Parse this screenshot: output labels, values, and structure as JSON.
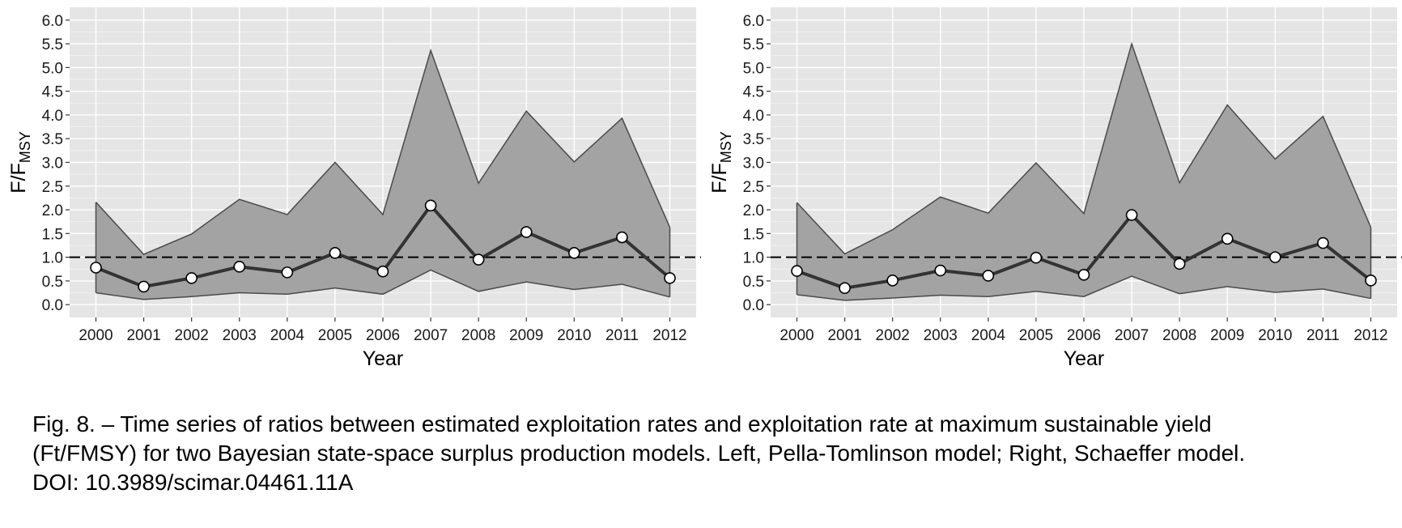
{
  "chart_data": [
    {
      "type": "line",
      "title": "",
      "xlabel": "Year",
      "ylabel": "F/FMSY",
      "ylabel_main": "F/F",
      "ylabel_sub": "MSY",
      "x": [
        2000,
        2001,
        2002,
        2003,
        2004,
        2005,
        2006,
        2007,
        2008,
        2009,
        2010,
        2011,
        2012
      ],
      "xticks": [
        "2000",
        "2001",
        "2002",
        "2003",
        "2004",
        "2005",
        "2006",
        "2007",
        "2008",
        "2009",
        "2010",
        "2011",
        "2012"
      ],
      "yticks": [
        "0.0",
        "0.5",
        "1.0",
        "1.5",
        "2.0",
        "2.5",
        "3.0",
        "3.5",
        "4.0",
        "4.5",
        "5.0",
        "5.5",
        "6.0"
      ],
      "ylim": [
        -0.27,
        6.27
      ],
      "reference_line_y": 1.0,
      "grid": true,
      "series": [
        {
          "role": "median",
          "values": [
            0.78,
            0.38,
            0.56,
            0.8,
            0.68,
            1.09,
            0.7,
            2.09,
            0.95,
            1.53,
            1.09,
            1.42,
            0.56
          ]
        },
        {
          "role": "upper",
          "values": [
            2.16,
            1.06,
            1.49,
            2.22,
            1.9,
            3.0,
            1.9,
            5.36,
            2.56,
            4.08,
            3.01,
            3.93,
            1.63
          ]
        },
        {
          "role": "lower",
          "values": [
            0.25,
            0.11,
            0.17,
            0.25,
            0.22,
            0.35,
            0.22,
            0.73,
            0.28,
            0.48,
            0.32,
            0.43,
            0.16
          ]
        }
      ]
    },
    {
      "type": "line",
      "title": "",
      "xlabel": "Year",
      "ylabel": "F/FMSY",
      "ylabel_main": "F/F",
      "ylabel_sub": "MSY",
      "x": [
        2000,
        2001,
        2002,
        2003,
        2004,
        2005,
        2006,
        2007,
        2008,
        2009,
        2010,
        2011,
        2012
      ],
      "xticks": [
        "2000",
        "2001",
        "2002",
        "2003",
        "2004",
        "2005",
        "2006",
        "2007",
        "2008",
        "2009",
        "2010",
        "2011",
        "2012"
      ],
      "yticks": [
        "0.0",
        "0.5",
        "1.0",
        "1.5",
        "2.0",
        "2.5",
        "3.0",
        "3.5",
        "4.0",
        "4.5",
        "5.0",
        "5.5",
        "6.0"
      ],
      "ylim": [
        -0.27,
        6.27
      ],
      "reference_line_y": 1.0,
      "grid": true,
      "series": [
        {
          "role": "median",
          "values": [
            0.71,
            0.35,
            0.51,
            0.72,
            0.61,
            0.99,
            0.63,
            1.89,
            0.86,
            1.39,
            1.0,
            1.3,
            0.51
          ]
        },
        {
          "role": "upper",
          "values": [
            2.15,
            1.07,
            1.58,
            2.27,
            1.93,
            2.99,
            1.92,
            5.5,
            2.57,
            4.21,
            3.07,
            3.97,
            1.63
          ]
        },
        {
          "role": "lower",
          "values": [
            0.21,
            0.09,
            0.14,
            0.2,
            0.17,
            0.28,
            0.17,
            0.6,
            0.23,
            0.38,
            0.26,
            0.33,
            0.13
          ]
        }
      ]
    }
  ],
  "caption": {
    "line1": "Fig. 8. – Time series of ratios between estimated exploitation rates and exploitation rate at maximum sustainable yield",
    "line2": "(Ft/FMSY) for two Bayesian state-space surplus production models. Left, Pella-Tomlinson model; Right, Schaeffer model.",
    "line3": "DOI: 10.3989/scimar.04461.11A"
  },
  "colors": {
    "panel_background": "#e5e5e5",
    "grid_major": "#ffffff",
    "ribbon_fill": "#a3a3a3",
    "ribbon_outline": "#4a4a4a",
    "median_line": "#333333",
    "point_fill": "#ffffff",
    "reference_line": "#000000"
  }
}
